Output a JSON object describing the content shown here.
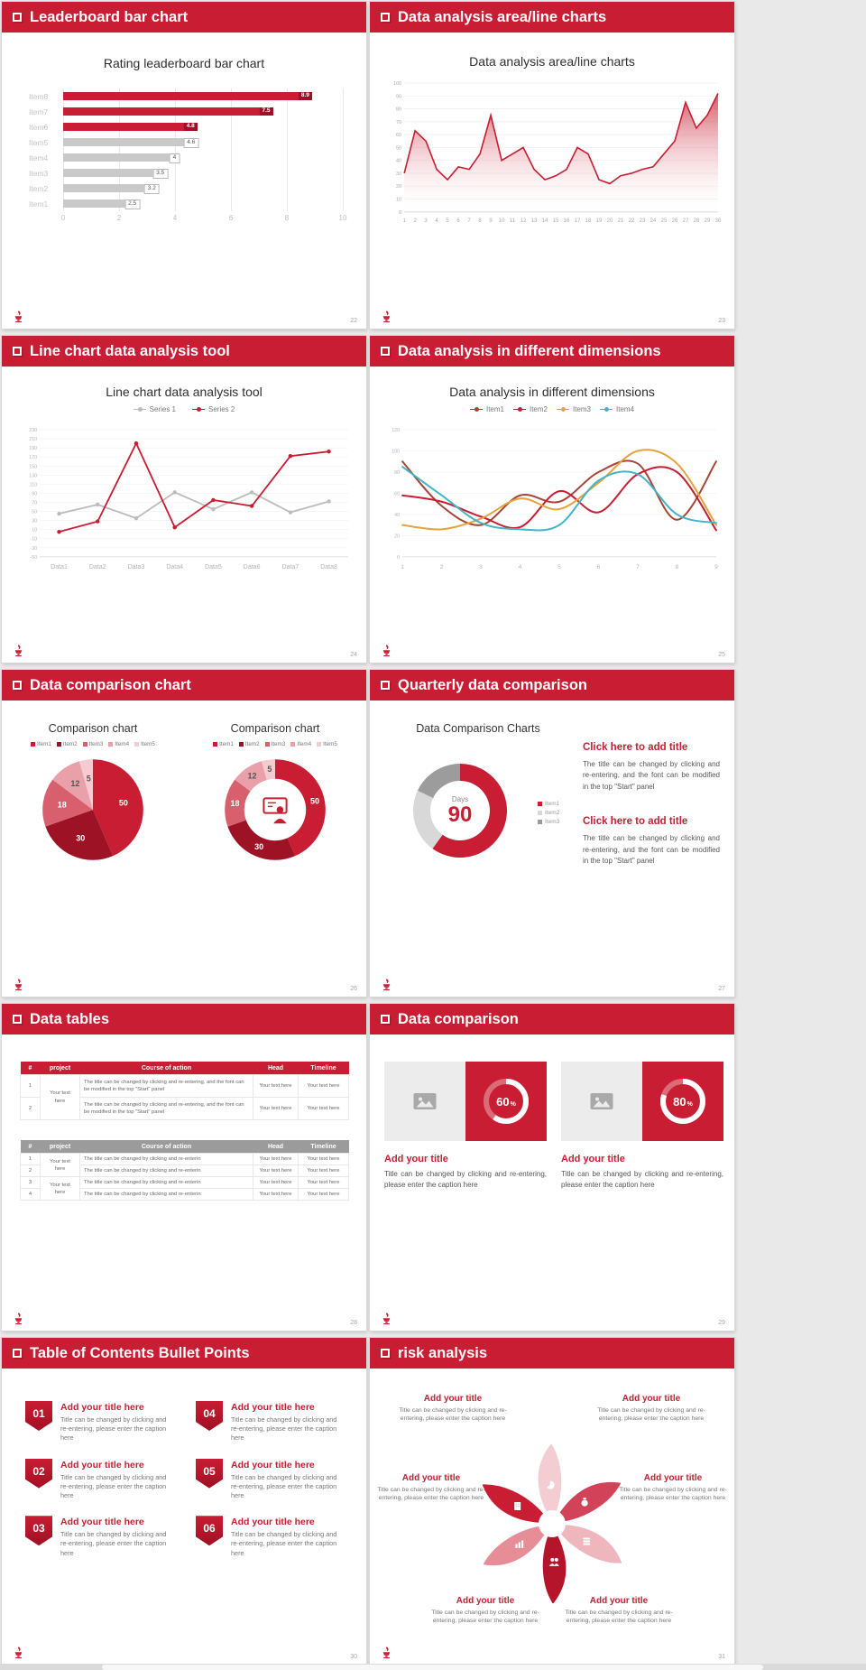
{
  "accent": "#c81d32",
  "background": "#e9e9e9",
  "slides": [
    {
      "header": "Leaderboard bar chart",
      "page": "22",
      "title": "Rating leaderboard bar chart"
    },
    {
      "header": "Data analysis area/line charts",
      "page": "23",
      "title": "Data analysis area/line charts"
    },
    {
      "header": "Line chart data analysis tool",
      "page": "24",
      "title": "Line chart data analysis tool"
    },
    {
      "header": "Data analysis in different dimensions",
      "page": "25",
      "title": "Data analysis in different dimensions"
    },
    {
      "header": "Data comparison chart",
      "page": "26",
      "left_title": "Comparison chart",
      "right_title": "Comparison chart"
    },
    {
      "header": "Quarterly data comparison",
      "page": "27",
      "panel_title": "Data Comparison Charts",
      "center_label": "Days",
      "center_value": "90",
      "blocks": [
        {
          "title": "Click here to add title",
          "body": "The title can be changed by clicking and re-entering, and the font can be modified in the top \"Start\" panel"
        },
        {
          "title": "Click here to add title",
          "body": "The title can be changed by clicking and re-entering, and the font can be modified in the top \"Start\" panel"
        }
      ]
    },
    {
      "header": "Data tables",
      "page": "28",
      "tables": [
        {
          "style": "red",
          "headers": [
            "#",
            "project",
            "Course of action",
            "Head",
            "Timeline"
          ],
          "rows": [
            [
              "1",
              "Your text here",
              "The title can be changed by clicking and re-entering, and the font can be modified in the top \"Start\" panel",
              "Your text here",
              "Your text here"
            ],
            [
              "2",
              "",
              "The title can be changed by clicking and re-entering, and the font can be modified in the top \"Start\" panel",
              "Your text here",
              "Your text here"
            ]
          ]
        },
        {
          "style": "gray",
          "headers": [
            "#",
            "project",
            "Course of action",
            "Head",
            "Timeline"
          ],
          "rows": [
            [
              "1",
              "Your text here",
              "The title can be changed by clicking and re-enterin",
              "Your text here",
              "Your text here"
            ],
            [
              "2",
              "",
              "The title can be changed by clicking and re-enterin",
              "Your text here",
              "Your text here"
            ],
            [
              "3",
              "Your text here",
              "The title can be changed by clicking and re-enterin",
              "Your text here",
              "Your text here"
            ],
            [
              "4",
              "",
              "The title can be changed by clicking and re-enterin",
              "Your text here",
              "Your text here"
            ]
          ]
        }
      ]
    },
    {
      "header": "Data comparison",
      "page": "29",
      "cards": [
        {
          "pct": 60,
          "title": "Add your title",
          "body": "Title can be changed by clicking and re-entering, please enter the caption here"
        },
        {
          "pct": 80,
          "title": "Add your title",
          "body": "Title can be changed by clicking and re-entering, please enter the caption here"
        }
      ]
    },
    {
      "header": "Table of Contents Bullet Points",
      "page": "30",
      "items": [
        {
          "num": "01",
          "title": "Add your title here",
          "body": "Title can be changed by clicking and re-entering, please enter the caption here"
        },
        {
          "num": "02",
          "title": "Add your title here",
          "body": "Title can be changed by clicking and re-entering, please enter the caption here"
        },
        {
          "num": "03",
          "title": "Add your title here",
          "body": "Title can be changed by clicking and re-entering, please enter the caption here"
        },
        {
          "num": "04",
          "title": "Add your title here",
          "body": "Title can be changed by clicking and re-entering, please enter the caption here"
        },
        {
          "num": "05",
          "title": "Add your title here",
          "body": "Title can be changed by clicking and re-entering, please enter the caption here"
        },
        {
          "num": "06",
          "title": "Add your title here",
          "body": "Title can be changed by clicking and re-entering, please enter the caption here"
        }
      ]
    },
    {
      "header": "risk analysis",
      "page": "31",
      "petal_colors": [
        "#d2435a",
        "#efb6bd",
        "#b5152b",
        "#e78d98",
        "#c81d32",
        "#f3cdd2"
      ],
      "labels": [
        {
          "title": "Add your title",
          "body": "Title can be changed by clicking and re-entering, please enter the caption here"
        },
        {
          "title": "Add your title",
          "body": "Title can be changed by clicking and re-entering, please enter the caption here"
        },
        {
          "title": "Add your title",
          "body": "Title can be changed by clicking and re-entering, please enter the caption here"
        },
        {
          "title": "Add your title",
          "body": "Title can be changed by clicking and re-entering, please enter the caption here"
        },
        {
          "title": "Add your title",
          "body": "Title can be changed by clicking and re-entering, please enter the caption here"
        },
        {
          "title": "Add your title",
          "body": "Title can be changed by clicking and re-entering, please enter the caption here"
        }
      ]
    }
  ],
  "chart_data": [
    {
      "type": "bar",
      "orientation": "horizontal",
      "title": "Rating leaderboard bar chart",
      "categories": [
        "Item1",
        "Item2",
        "Item3",
        "Item4",
        "Item5",
        "Item6",
        "Item7",
        "Item8"
      ],
      "values": [
        2.5,
        3.2,
        3.5,
        4,
        4.6,
        4.8,
        7.5,
        8.9
      ],
      "bar_colors": [
        "#c9c9c9",
        "#c9c9c9",
        "#c9c9c9",
        "#c9c9c9",
        "#c9c9c9",
        "#c81d32",
        "#c81d32",
        "#c81d32"
      ],
      "xlim": [
        0,
        10
      ],
      "xticks": [
        0,
        2,
        4,
        6,
        8,
        10
      ]
    },
    {
      "type": "area",
      "title": "Data analysis area/line charts",
      "x": [
        1,
        2,
        3,
        4,
        5,
        6,
        7,
        8,
        9,
        10,
        11,
        12,
        13,
        14,
        15,
        16,
        17,
        18,
        19,
        20,
        21,
        22,
        23,
        24,
        25,
        26,
        27,
        28,
        29,
        30
      ],
      "values": [
        30,
        63,
        55,
        33,
        25,
        35,
        33,
        45,
        75,
        40,
        45,
        50,
        33,
        25,
        28,
        33,
        50,
        45,
        25,
        22,
        28,
        30,
        33,
        35,
        45,
        55,
        85,
        65,
        75,
        92
      ],
      "ylim": [
        0,
        100
      ],
      "ytick_step": 10,
      "line_color": "#c81d32",
      "fill": "red-gradient"
    },
    {
      "type": "line",
      "title": "Line chart data analysis tool",
      "categories": [
        "Data1",
        "Data2",
        "Data3",
        "Data4",
        "Data5",
        "Data6",
        "Data7",
        "Data8"
      ],
      "series": [
        {
          "name": "Series 1",
          "color": "#bcbcbc",
          "values": [
            45,
            65,
            35,
            92,
            55,
            92,
            48,
            72
          ]
        },
        {
          "name": "Series 2",
          "color": "#c81d32",
          "values": [
            5,
            28,
            200,
            15,
            75,
            62,
            172,
            182
          ]
        }
      ],
      "ylim": [
        -50,
        230
      ],
      "ytick_step": 20,
      "legend_position": "top",
      "markers": true
    },
    {
      "type": "line",
      "title": "Data analysis in different dimensions",
      "x": [
        1,
        2,
        3,
        4,
        5,
        6,
        7,
        8,
        9
      ],
      "series": [
        {
          "name": "Item1",
          "color": "#a84436",
          "values": [
            90,
            48,
            30,
            58,
            52,
            80,
            88,
            35,
            90
          ]
        },
        {
          "name": "Item2",
          "color": "#c81d32",
          "values": [
            58,
            52,
            38,
            28,
            62,
            42,
            78,
            80,
            25
          ]
        },
        {
          "name": "Item3",
          "color": "#e5a33c",
          "values": [
            30,
            26,
            36,
            55,
            45,
            70,
            100,
            88,
            30
          ]
        },
        {
          "name": "Item4",
          "color": "#43b5c6",
          "values": [
            85,
            58,
            32,
            26,
            30,
            72,
            78,
            40,
            32
          ]
        }
      ],
      "ylim": [
        0,
        120
      ],
      "ytick_step": 20,
      "smooth": true,
      "legend_position": "top"
    },
    {
      "type": "pie",
      "title": "Comparison chart",
      "labels": [
        "Item1",
        "Item2",
        "Item3",
        "Item4",
        "Item5"
      ],
      "values": [
        50,
        30,
        18,
        12,
        5
      ],
      "colors": [
        "#c81d32",
        "#9e1226",
        "#d8606e",
        "#e9a0a9",
        "#f3cbd0"
      ]
    },
    {
      "type": "pie",
      "donut": true,
      "title": "Comparison chart",
      "labels": [
        "Item1",
        "Item2",
        "Item3",
        "Item4",
        "Item5"
      ],
      "values": [
        50,
        30,
        18,
        12,
        5
      ],
      "colors": [
        "#c81d32",
        "#9e1226",
        "#d8606e",
        "#e9a0a9",
        "#f3cbd0"
      ],
      "center_icon": "presenter"
    },
    {
      "type": "pie",
      "donut": true,
      "title": "Data Comparison Charts",
      "labels": [
        "Item1",
        "Item2",
        "Item3"
      ],
      "values": [
        60,
        22,
        18
      ],
      "colors": [
        "#c81d32",
        "#d8d8d8",
        "#9c9c9c"
      ],
      "center_label": "Days",
      "center_value": "90"
    },
    {
      "type": "progress",
      "unit": "%",
      "values": [
        60,
        80
      ]
    }
  ]
}
